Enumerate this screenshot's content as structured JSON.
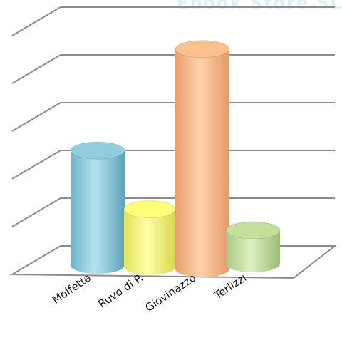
{
  "chart_data": {
    "type": "bar",
    "style": "3d-cylinder",
    "categories": [
      "Molfetta",
      "Ruvo di P.",
      "Giovinazzo",
      "Terlizzi"
    ],
    "values": [
      2.4,
      1.2,
      4.6,
      0.7
    ],
    "colors": [
      "#92cddc",
      "#ffff7a",
      "#fac090",
      "#c3df9c"
    ],
    "ylim": [
      0,
      5
    ],
    "grid": true,
    "title": "",
    "xlabel": "",
    "ylabel": ""
  },
  "watermark": "Ebook Store SCR"
}
